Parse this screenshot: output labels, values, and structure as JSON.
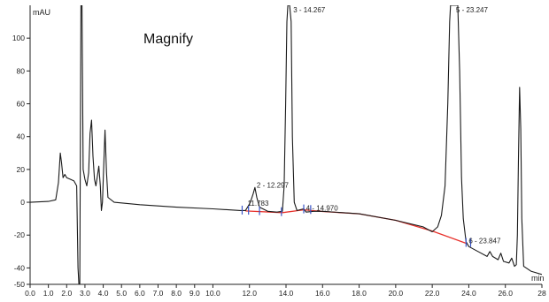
{
  "chart_data": {
    "type": "line",
    "y_unit": "mAU",
    "x_unit": "min",
    "xlim": [
      0,
      28
    ],
    "ylim": [
      -50,
      120
    ],
    "x_ticks": [
      {
        "v": 0.0,
        "label": "0.0"
      },
      {
        "v": 1.0,
        "label": "1.0"
      },
      {
        "v": 2.0,
        "label": "2.0"
      },
      {
        "v": 3.0,
        "label": "3.0"
      },
      {
        "v": 4.0,
        "label": "4.0"
      },
      {
        "v": 5.0,
        "label": "5.0"
      },
      {
        "v": 6.0,
        "label": "6.0"
      },
      {
        "v": 7.0,
        "label": "7.0"
      },
      {
        "v": 8.0,
        "label": "8.0"
      },
      {
        "v": 9.0,
        "label": "9.0"
      },
      {
        "v": 10.0,
        "label": "10.0"
      },
      {
        "v": 12.0,
        "label": "12.0"
      },
      {
        "v": 14.0,
        "label": "14.0"
      },
      {
        "v": 16.0,
        "label": "16.0"
      },
      {
        "v": 18.0,
        "label": "18.0"
      },
      {
        "v": 20.0,
        "label": "20.0"
      },
      {
        "v": 22.0,
        "label": "22.0"
      },
      {
        "v": 24.0,
        "label": "24.0"
      },
      {
        "v": 26.0,
        "label": "26.0"
      },
      {
        "v": 28.0,
        "label": "28"
      }
    ],
    "y_ticks": [
      {
        "v": 100,
        "label": "100"
      },
      {
        "v": 80,
        "label": "80"
      },
      {
        "v": 60,
        "label": "60"
      },
      {
        "v": 40,
        "label": "40"
      },
      {
        "v": 20,
        "label": "20"
      },
      {
        "v": 0,
        "label": "0"
      },
      {
        "v": -20,
        "label": "-20"
      },
      {
        "v": -40,
        "label": "-40"
      },
      {
        "v": -50,
        "label": "-50"
      }
    ],
    "peak_labels": [
      {
        "text": "2 - 12.297",
        "x": 12.3,
        "y": 9
      },
      {
        "text": "11.783",
        "x": 11.8,
        "y": -2
      },
      {
        "text": "3 - 14.267",
        "x": 14.3,
        "y": 120
      },
      {
        "text": "4 - 14.970",
        "x": 15.0,
        "y": -5
      },
      {
        "text": "5 - 23.247",
        "x": 23.2,
        "y": 120
      },
      {
        "text": "6 - 23.847",
        "x": 23.9,
        "y": -25
      }
    ],
    "annotation": "Magnify",
    "series": [
      {
        "color": "#1a1a1a",
        "points": [
          [
            0.0,
            0.0
          ],
          [
            1.0,
            0.5
          ],
          [
            1.4,
            1.5
          ],
          [
            1.55,
            12
          ],
          [
            1.65,
            30
          ],
          [
            1.72,
            24
          ],
          [
            1.8,
            15
          ],
          [
            1.9,
            17
          ],
          [
            2.0,
            15
          ],
          [
            2.2,
            14
          ],
          [
            2.4,
            13
          ],
          [
            2.55,
            10
          ],
          [
            2.62,
            -40
          ],
          [
            2.67,
            -50
          ],
          [
            2.72,
            -50
          ],
          [
            2.78,
            120
          ],
          [
            2.84,
            120
          ],
          [
            2.9,
            20
          ],
          [
            3.0,
            14
          ],
          [
            3.1,
            10
          ],
          [
            3.2,
            18
          ],
          [
            3.28,
            42
          ],
          [
            3.36,
            50
          ],
          [
            3.44,
            28
          ],
          [
            3.52,
            14
          ],
          [
            3.6,
            10
          ],
          [
            3.68,
            16
          ],
          [
            3.76,
            22
          ],
          [
            3.84,
            10
          ],
          [
            3.9,
            -5
          ],
          [
            3.96,
            0
          ],
          [
            4.02,
            20
          ],
          [
            4.1,
            44
          ],
          [
            4.18,
            18
          ],
          [
            4.26,
            3
          ],
          [
            4.6,
            0
          ],
          [
            6.0,
            -1.5
          ],
          [
            8.0,
            -3
          ],
          [
            10.0,
            -4
          ],
          [
            11.5,
            -5
          ],
          [
            11.78,
            -5
          ],
          [
            11.9,
            -3
          ],
          [
            12.05,
            0
          ],
          [
            12.2,
            5
          ],
          [
            12.3,
            9
          ],
          [
            12.4,
            3
          ],
          [
            12.55,
            -3
          ],
          [
            13.0,
            -5.5
          ],
          [
            13.5,
            -6
          ],
          [
            13.8,
            -5.5
          ],
          [
            13.9,
            10
          ],
          [
            13.98,
            60
          ],
          [
            14.05,
            110
          ],
          [
            14.1,
            120
          ],
          [
            14.2,
            120
          ],
          [
            14.28,
            110
          ],
          [
            14.35,
            40
          ],
          [
            14.45,
            0
          ],
          [
            14.6,
            -5
          ],
          [
            14.97,
            -4
          ],
          [
            15.1,
            -6
          ],
          [
            15.5,
            -5.5
          ],
          [
            16.0,
            -5.5
          ],
          [
            18.0,
            -7
          ],
          [
            20.0,
            -11
          ],
          [
            21.5,
            -15
          ],
          [
            22.0,
            -18
          ],
          [
            22.3,
            -15
          ],
          [
            22.5,
            -8
          ],
          [
            22.7,
            10
          ],
          [
            22.85,
            60
          ],
          [
            22.95,
            110
          ],
          [
            23.0,
            120
          ],
          [
            23.4,
            120
          ],
          [
            23.5,
            80
          ],
          [
            23.6,
            15
          ],
          [
            23.7,
            -10
          ],
          [
            23.85,
            -24
          ],
          [
            24.0,
            -27
          ],
          [
            24.5,
            -30
          ],
          [
            25.0,
            -33
          ],
          [
            25.15,
            -30
          ],
          [
            25.3,
            -33
          ],
          [
            25.6,
            -35
          ],
          [
            25.75,
            -31
          ],
          [
            25.9,
            -36
          ],
          [
            26.2,
            -37
          ],
          [
            26.35,
            -34
          ],
          [
            26.5,
            -39
          ],
          [
            26.6,
            -38
          ],
          [
            26.66,
            -20
          ],
          [
            26.72,
            30
          ],
          [
            26.78,
            70
          ],
          [
            26.84,
            45
          ],
          [
            26.9,
            -10
          ],
          [
            27.0,
            -39
          ],
          [
            27.4,
            -42
          ],
          [
            28.0,
            -44
          ]
        ]
      }
    ],
    "baselines": [
      {
        "color": "#e8302a",
        "points": [
          [
            11.783,
            -5.3
          ],
          [
            13.8,
            -6.3
          ],
          [
            14.97,
            -4.6
          ],
          [
            16.0,
            -5.6
          ],
          [
            18.0,
            -7.0
          ],
          [
            20.0,
            -11.0
          ],
          [
            22.0,
            -17.5
          ],
          [
            23.847,
            -25.0
          ]
        ]
      }
    ],
    "integration_marks": [
      11.6,
      11.95,
      12.55,
      13.75,
      14.97,
      15.35,
      23.85,
      24.1
    ]
  }
}
